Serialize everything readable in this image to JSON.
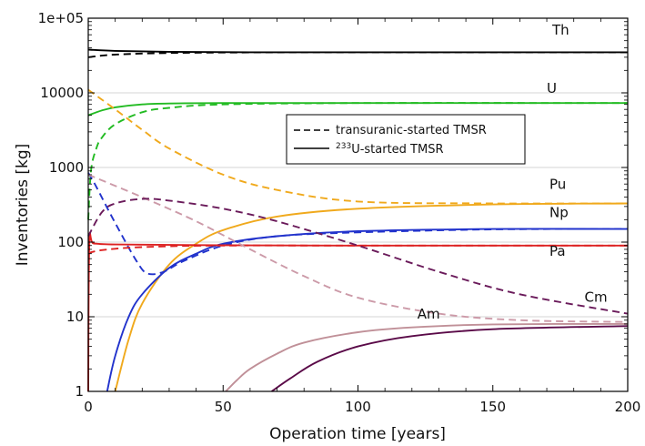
{
  "chart_data": {
    "type": "line",
    "title": "",
    "xlabel": "Operation time [years]",
    "ylabel": "Inventories [kg]",
    "xlim": [
      0,
      200
    ],
    "ylim": [
      1,
      100000
    ],
    "yscale": "log",
    "grid": "horizontal major",
    "x_ticks": [
      0,
      50,
      100,
      150,
      200
    ],
    "x_tick_labels": [
      "0",
      "50",
      "100",
      "150",
      "200"
    ],
    "y_ticks": [
      1,
      10,
      100,
      1000,
      10000,
      100000
    ],
    "y_tick_labels": [
      "1",
      "10",
      "100",
      "1000",
      "10000",
      "1e+05"
    ],
    "legend": {
      "placement": "center-right",
      "entries": [
        {
          "style": "dashed",
          "text": "transuranic-started TMSR"
        },
        {
          "style": "solid",
          "sup": "233",
          "text": "U-started TMSR"
        }
      ]
    },
    "series": [
      {
        "element": "Th",
        "start": "233U",
        "color": "#000000",
        "x": [
          0,
          10,
          30,
          60,
          100,
          200
        ],
        "y": [
          38000,
          36500,
          35500,
          35000,
          35000,
          35000
        ]
      },
      {
        "element": "Th",
        "start": "transuranic",
        "color": "#000000",
        "x": [
          0,
          10,
          30,
          60,
          100,
          200
        ],
        "y": [
          30000,
          32500,
          34200,
          34800,
          35000,
          35000
        ]
      },
      {
        "element": "U",
        "start": "233U",
        "color": "#22bb22",
        "x": [
          0,
          5,
          10,
          20,
          30,
          50,
          100,
          200
        ],
        "y": [
          5000,
          5800,
          6400,
          7000,
          7200,
          7300,
          7300,
          7300
        ]
      },
      {
        "element": "U",
        "start": "transuranic",
        "color": "#22bb22",
        "x": [
          0,
          1,
          3,
          5,
          10,
          20,
          30,
          50,
          100,
          200
        ],
        "y": [
          200,
          900,
          1800,
          2500,
          3800,
          5500,
          6300,
          7000,
          7300,
          7300
        ]
      },
      {
        "element": "Pu",
        "start": "233U",
        "color": "#f0a91c",
        "x": [
          10,
          15,
          20,
          30,
          40,
          50,
          70,
          100,
          150,
          200
        ],
        "y": [
          1,
          5,
          15,
          50,
          95,
          145,
          220,
          280,
          320,
          330
        ]
      },
      {
        "element": "Pu",
        "start": "transuranic",
        "color": "#f0a91c",
        "x": [
          0,
          10,
          20,
          30,
          50,
          70,
          100,
          150,
          200
        ],
        "y": [
          11000,
          6000,
          3200,
          1800,
          800,
          500,
          350,
          330,
          330
        ]
      },
      {
        "element": "Np",
        "start": "233U",
        "color": "#2233cc",
        "x": [
          7,
          10,
          15,
          20,
          30,
          40,
          50,
          70,
          100,
          150,
          200
        ],
        "y": [
          1,
          3,
          10,
          20,
          45,
          70,
          95,
          120,
          140,
          150,
          150
        ]
      },
      {
        "element": "Np",
        "start": "transuranic",
        "color": "#2233cc",
        "x": [
          0,
          3,
          10,
          18,
          22,
          28,
          35,
          50,
          70,
          100,
          150,
          200
        ],
        "y": [
          850,
          550,
          180,
          55,
          38,
          40,
          55,
          90,
          120,
          135,
          148,
          150
        ]
      },
      {
        "element": "Pa",
        "start": "233U",
        "color": "#dd2222",
        "x": [
          0,
          0.4,
          2,
          10,
          50,
          100,
          200
        ],
        "y": [
          1,
          95,
          96,
          93,
          91,
          90,
          90
        ]
      },
      {
        "element": "Pa",
        "start": "transuranic",
        "color": "#dd2222",
        "x": [
          0,
          1,
          5,
          15,
          30,
          50,
          100,
          200
        ],
        "y": [
          70,
          73,
          78,
          84,
          88,
          90,
          90,
          90
        ]
      },
      {
        "element": "Am",
        "start": "233U",
        "color": "#c09098",
        "x": [
          51,
          55,
          60,
          70,
          80,
          100,
          120,
          150,
          200
        ],
        "y": [
          1,
          1.4,
          2,
          3.2,
          4.5,
          6.2,
          7.2,
          7.9,
          8
        ]
      },
      {
        "element": "Am",
        "start": "transuranic",
        "color": "#cc9aa8",
        "x": [
          0,
          20,
          40,
          60,
          80,
          100,
          130,
          160,
          200
        ],
        "y": [
          800,
          400,
          190,
          80,
          35,
          18,
          11,
          9,
          8.5
        ]
      },
      {
        "element": "Cm",
        "start": "233U",
        "color": "#5a0a48",
        "x": [
          68,
          75,
          85,
          100,
          120,
          150,
          200
        ],
        "y": [
          1,
          1.5,
          2.5,
          4,
          5.5,
          6.8,
          7.5
        ]
      },
      {
        "element": "Cm",
        "start": "transuranic",
        "color": "#6a1a5a",
        "x": [
          0,
          5,
          10,
          20,
          30,
          50,
          70,
          100,
          130,
          160,
          200
        ],
        "y": [
          120,
          250,
          330,
          380,
          360,
          280,
          190,
          90,
          40,
          20,
          11
        ]
      }
    ],
    "series_labels": [
      {
        "text": "Th",
        "x": 172,
        "y": 60000
      },
      {
        "text": "U",
        "x": 170,
        "y": 10000
      },
      {
        "text": "Pu",
        "x": 171,
        "y": 520
      },
      {
        "text": "Np",
        "x": 171,
        "y": 215
      },
      {
        "text": "Pa",
        "x": 171,
        "y": 66
      },
      {
        "text": "Cm",
        "x": 184,
        "y": 16
      },
      {
        "text": "Am",
        "x": 122,
        "y": 9.5
      }
    ]
  }
}
